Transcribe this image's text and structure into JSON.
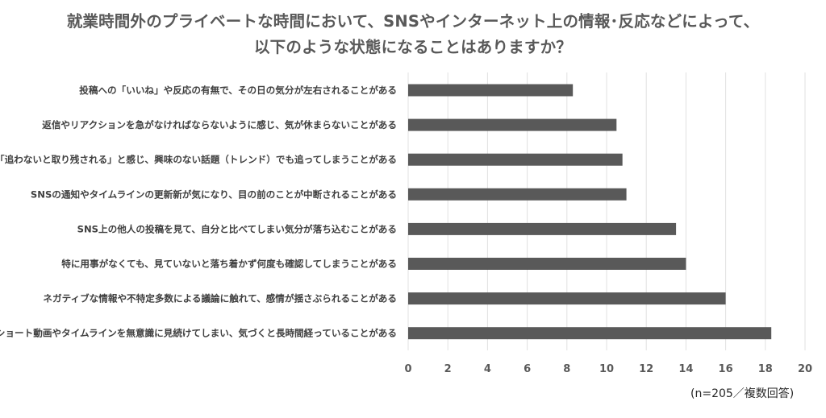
{
  "chart_data": {
    "type": "bar",
    "orientation": "horizontal",
    "title_line1": "就業時間外のプライベートな時間において、SNSやインターネット上の情報･反応などによって、",
    "title_line2": "以下のような状態になることはありますか？",
    "note": "(n=205／複数回答)",
    "categories": [
      "投稿への「いいね」や反応の有無で、その日の気分が左右されることがある",
      "返信やリアクションを急がなければならないように感じ、気が休まらないことがある",
      "「追わないと取り残される」と感じ、興味のない話題（トレンド）でも追ってしまうことがある",
      "SNSの通知やタイムラインの更新新が気になり、目の前のことが中断されることがある",
      "SNS上の他人の投稿を見て、自分と比べてしまい気分が落ち込むことがある",
      "特に用事がなくても、見ていないと落ち着かず何度も確認してしまうことがある",
      "ネガティブな情報や不特定多数による議論に触れて、感情が揺さぶられることがある",
      "ショート動画やタイムラインを無意識に見続けてしまい、気づくと長時間経っていることがある"
    ],
    "values": [
      8.3,
      10.5,
      10.8,
      11.0,
      13.5,
      14.0,
      16.0,
      18.3
    ],
    "xlim": [
      0,
      20
    ],
    "xticks": [
      "0",
      "2",
      "4",
      "6",
      "8",
      "10",
      "12",
      "14",
      "16",
      "18",
      "20"
    ],
    "grid": true,
    "bar_color": "#595959",
    "grid_color": "#e0e0e0"
  }
}
